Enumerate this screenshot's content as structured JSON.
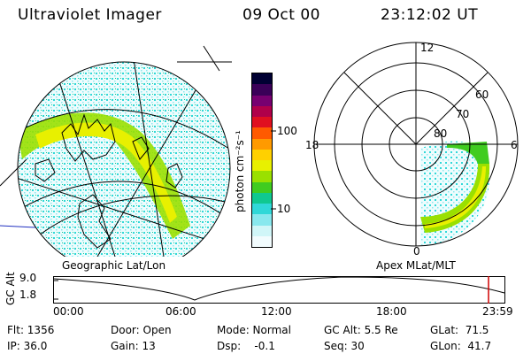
{
  "header": {
    "title": "Ultraviolet Imager",
    "date": "09 Oct 00",
    "time": "23:12:02 UT"
  },
  "colorbar": {
    "unit_label": "photon cm⁻²s⁻¹",
    "ticks": [
      "100",
      "10"
    ],
    "colors": [
      "#000033",
      "#3a0058",
      "#770070",
      "#b0004a",
      "#e01020",
      "#ff5a00",
      "#ff9a00",
      "#ffd000",
      "#e8f000",
      "#9ae000",
      "#40cc20",
      "#10c890",
      "#30d8d8",
      "#88e8ee",
      "#d0f6f8",
      "#f2fcfe"
    ]
  },
  "left_panel": {
    "caption": "Geographic Lat/Lon"
  },
  "right_panel": {
    "caption": "Apex MLat/MLT",
    "mlt_labels": {
      "top": "12",
      "left": "18",
      "right": "6",
      "bottom": "0"
    },
    "lat_labels": [
      "60",
      "70",
      "80"
    ]
  },
  "altitude_plot": {
    "ylabel": "GC Alt",
    "yticks": [
      "9.0",
      "1.8"
    ],
    "xticks": [
      "00:00",
      "06:00",
      "12:00",
      "18:00",
      "23:59"
    ],
    "marker_color": "#d00000"
  },
  "info": {
    "flt": "Flt: 1356",
    "ip": "IP: 36.0",
    "door": "Door: Open",
    "gain": "Gain: 13",
    "mode": "Mode: Normal",
    "dsp": "Dsp:    -0.1",
    "gcalt": "GC Alt: 5.5 Re",
    "seq": "Seq: 30",
    "glat": "GLat:  71.5",
    "glon": "GLon:  41.7"
  }
}
